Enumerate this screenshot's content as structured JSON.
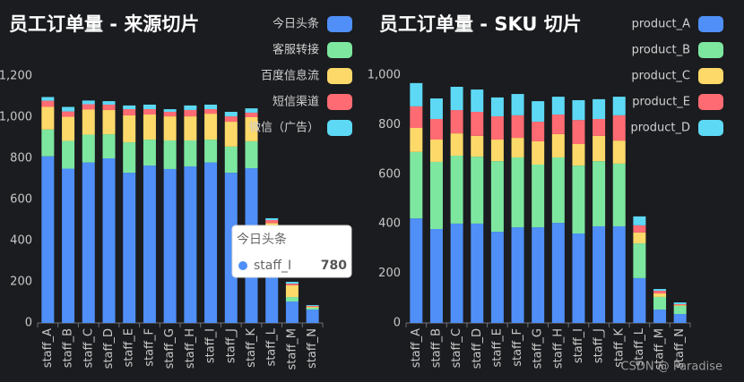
{
  "chart_data": [
    {
      "type": "bar",
      "stacked": true,
      "title": "员工订单量 - 来源切片",
      "categories": [
        "staff_A",
        "staff_B",
        "staff_C",
        "staff_D",
        "staff_E",
        "staff_F",
        "staff_G",
        "staff_H",
        "staff_I",
        "staff_J",
        "staff_K",
        "staff_L",
        "staff_M",
        "staff_N"
      ],
      "series": [
        {
          "name": "今日头条",
          "color": "#4f8ff7",
          "values": [
            810,
            750,
            780,
            800,
            730,
            765,
            748,
            761,
            780,
            730,
            752,
            440,
            104,
            65
          ]
        },
        {
          "name": "客服转接",
          "color": "#7de7a0",
          "values": [
            130,
            135,
            135,
            117,
            148,
            126,
            139,
            126,
            111,
            127,
            131,
            25,
            22,
            9
          ]
        },
        {
          "name": "百度信息流",
          "color": "#fdd96a",
          "values": [
            110,
            117,
            122,
            118,
            131,
            122,
            117,
            117,
            126,
            121,
            117,
            20,
            57,
            4
          ]
        },
        {
          "name": "短信渠道",
          "color": "#ff6b73",
          "values": [
            30,
            26,
            26,
            26,
            30,
            26,
            22,
            31,
            22,
            26,
            22,
            15,
            8,
            5
          ]
        },
        {
          "name": "微信（广告）",
          "color": "#5dd9f5",
          "values": [
            18,
            22,
            18,
            17,
            18,
            22,
            13,
            22,
            22,
            22,
            21,
            9,
            9,
            4
          ]
        }
      ],
      "ylim": [
        0,
        1200
      ],
      "yticks": [
        0,
        200,
        400,
        600,
        800,
        {
          "value": 1000,
          "label": "1,000"
        },
        {
          "value": 1200,
          "label": "1,200"
        }
      ],
      "grid": false,
      "legend": "top-right",
      "tooltip": {
        "title": "今日头条",
        "category": "staff_I",
        "value": 780,
        "color": "#4f8ff7"
      }
    },
    {
      "type": "bar",
      "stacked": true,
      "title": "员工订单量 - SKU 切片",
      "categories": [
        "staff_A",
        "staff_B",
        "staff_C",
        "staff_D",
        "staff_E",
        "staff_F",
        "staff_G",
        "staff_H",
        "staff_I",
        "staff_J",
        "staff_K",
        "staff_L",
        "staff_M",
        "staff_N"
      ],
      "series": [
        {
          "name": "product_A",
          "color": "#4f8ff7",
          "values": [
            422,
            379,
            401,
            401,
            368,
            386,
            386,
            404,
            361,
            390,
            390,
            181,
            54,
            36
          ]
        },
        {
          "name": "product_B",
          "color": "#7de7a0",
          "values": [
            268,
            271,
            274,
            270,
            285,
            282,
            253,
            264,
            274,
            263,
            253,
            140,
            51,
            33
          ]
        },
        {
          "name": "product_C",
          "color": "#fdd96a",
          "values": [
            97,
            90,
            90,
            84,
            87,
            79,
            94,
            94,
            87,
            102,
            93,
            44,
            14,
            3
          ]
        },
        {
          "name": "product_E",
          "color": "#ff6b73",
          "values": [
            87,
            83,
            94,
            97,
            94,
            91,
            79,
            79,
            97,
            68,
            102,
            29,
            11,
            4
          ]
        },
        {
          "name": "product_D",
          "color": "#5dd9f5",
          "values": [
            94,
            83,
            94,
            90,
            76,
            86,
            83,
            72,
            80,
            80,
            75,
            36,
            7,
            7
          ]
        }
      ],
      "ylim": [
        0,
        1000
      ],
      "yticks": [
        0,
        200,
        400,
        600,
        800,
        {
          "value": 1000,
          "label": "1,000"
        }
      ],
      "grid": false,
      "legend": "top-right"
    }
  ],
  "watermark": "CSDN @ Paradise"
}
